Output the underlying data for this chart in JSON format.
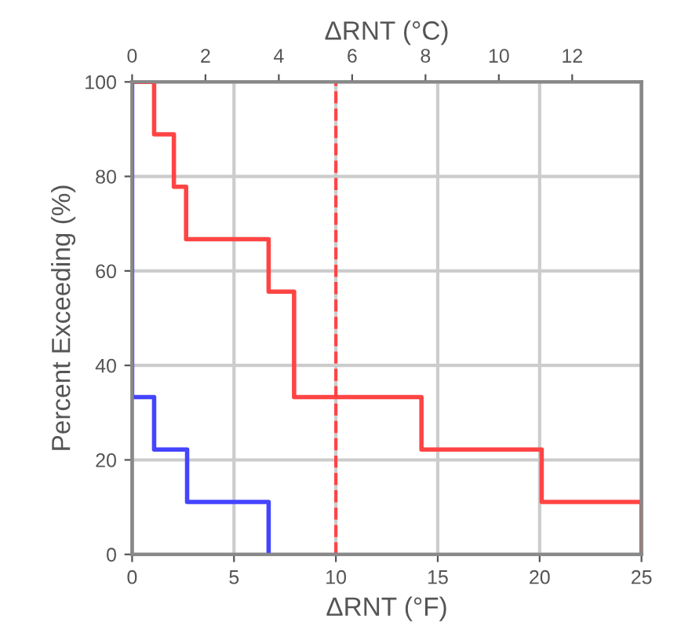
{
  "chart_data": {
    "type": "step",
    "xlabel": "ΔRNT (°F)",
    "ylabel": "Percent Exceeding (%)",
    "x2label": "ΔRNT (°C)",
    "series": [
      {
        "color": "#ff4444",
        "x": [
          0,
          1.08,
          2.05,
          2.65,
          6.7,
          7.95,
          14.2,
          20.1,
          25
        ],
        "values": [
          100,
          88.9,
          77.8,
          66.7,
          55.6,
          33.3,
          22.2,
          11.1,
          0
        ]
      },
      {
        "color": "#4444ff",
        "x": [
          0,
          0,
          1.08,
          2.7,
          6.7
        ],
        "values": [
          100,
          33.3,
          22.2,
          11.1,
          0
        ]
      }
    ],
    "xlim": [
      0,
      25
    ],
    "xticks": [
      0,
      5,
      10,
      15,
      20,
      25
    ],
    "x2lim": [
      0,
      13.89
    ],
    "x2ticks": [
      0,
      2,
      4,
      6,
      8,
      10,
      12
    ],
    "ylim": [
      0,
      100
    ],
    "yticks": [
      0,
      20,
      40,
      60,
      80,
      100
    ],
    "ref_lines": [
      {
        "axis": "x",
        "value": 10,
        "color": "#ff4444",
        "line_style": "dashed"
      }
    ],
    "grid": true
  }
}
